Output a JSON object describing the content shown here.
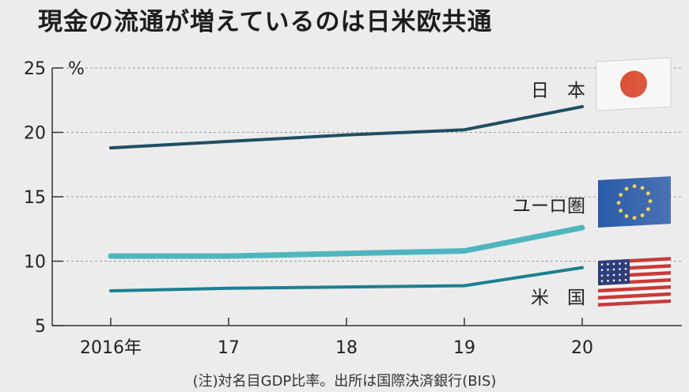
{
  "title": "現金の流通が増えているのは日米欧共通",
  "note": "(注)対名目GDP比率。出所は国際決済銀行(BIS)",
  "colors": {
    "japan": "#1e4f63",
    "eurozone": "#4fb6c0",
    "us": "#1c7f92",
    "grid": "#9a9a9a",
    "axis": "#333333"
  },
  "chart_data": {
    "type": "line",
    "x": [
      "2016年",
      "17",
      "18",
      "19",
      "20"
    ],
    "ylabel": "%",
    "ylim": [
      5,
      25
    ],
    "yticks": [
      5,
      10,
      15,
      20,
      25
    ],
    "grid": true,
    "series": [
      {
        "name": "日　本",
        "values": [
          18.8,
          19.3,
          19.8,
          20.2,
          22.0
        ],
        "flag": "japan-flag"
      },
      {
        "name": "ユーロ圏",
        "values": [
          10.4,
          10.4,
          10.6,
          10.8,
          12.6
        ],
        "flag": "eu-flag"
      },
      {
        "name": "米　国",
        "values": [
          7.7,
          7.9,
          8.0,
          8.1,
          9.5
        ],
        "flag": "us-flag"
      }
    ]
  }
}
